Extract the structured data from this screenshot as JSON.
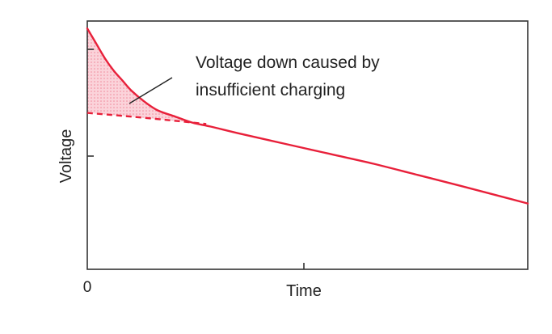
{
  "chart_data": {
    "type": "line",
    "title": "",
    "xlabel": "Time",
    "ylabel": "Voltage",
    "x_tick_labels": [
      "0"
    ],
    "annotation": {
      "line1": "Voltage down caused by",
      "line2": "insufficient charging"
    },
    "xlim": [
      0,
      100
    ],
    "ylim": [
      0,
      100
    ],
    "grid": false,
    "legend": "none",
    "series": [
      {
        "style": "solid",
        "color": "#e8203a",
        "x": [
          0,
          2,
          4,
          6,
          8,
          10,
          13,
          16,
          20,
          24,
          28,
          35,
          45,
          55,
          65,
          75,
          85,
          100
        ],
        "y": [
          97,
          91,
          85,
          80,
          76,
          72,
          67.5,
          64,
          61.5,
          59,
          57.5,
          54.5,
          50.5,
          46.5,
          42.5,
          38,
          33.5,
          26.5
        ]
      },
      {
        "style": "dashed",
        "color": "#e8203a",
        "x": [
          0,
          10,
          20,
          27
        ],
        "y": [
          63,
          61.5,
          59.8,
          58.5
        ]
      }
    ],
    "shaded_region": {
      "between": "solid and dashed series",
      "x_range": [
        0,
        27
      ],
      "color": "#f5a9b4"
    }
  }
}
